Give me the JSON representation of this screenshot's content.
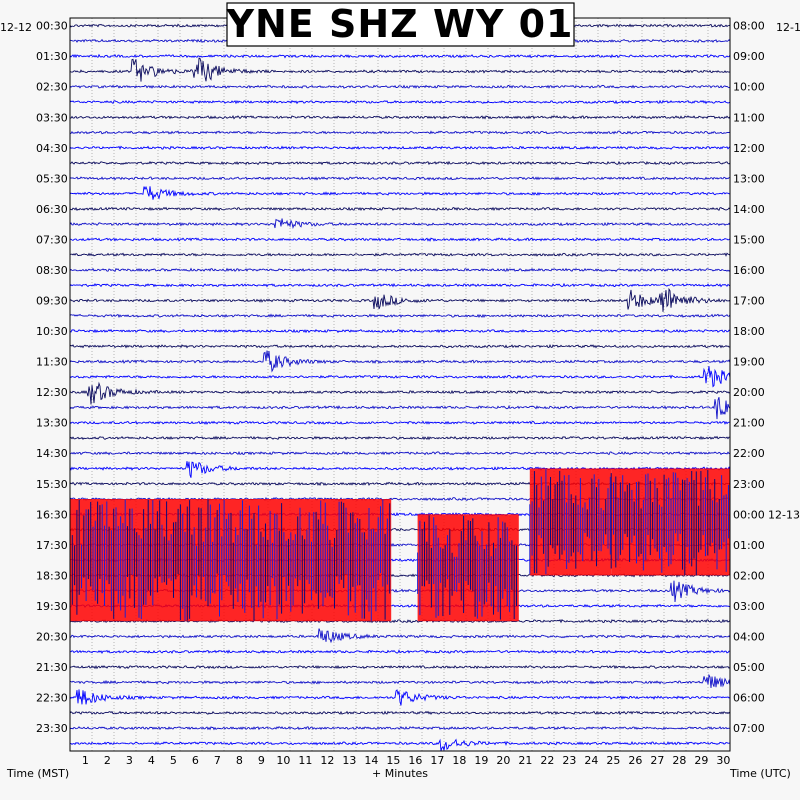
{
  "chart_data": {
    "type": "heatmap",
    "title": "YNE SHZ WY 01",
    "left_date": "12-12",
    "right_date": "12-1",
    "right_date_rollover": "12-13",
    "xlabel": "+ Minutes",
    "left_axis_label": "Time (MST)",
    "right_axis_label": "Time (UTC)",
    "x_ticks": [
      "1",
      "2",
      "3",
      "4",
      "5",
      "6",
      "7",
      "8",
      "9",
      "10",
      "11",
      "12",
      "13",
      "14",
      "15",
      "16",
      "17",
      "18",
      "19",
      "20",
      "21",
      "22",
      "23",
      "24",
      "25",
      "26",
      "27",
      "28",
      "29",
      "30"
    ],
    "x_range": [
      0,
      30
    ],
    "left_ticks": [
      "00:30",
      "01:30",
      "02:30",
      "03:30",
      "04:30",
      "05:30",
      "06:30",
      "07:30",
      "08:30",
      "09:30",
      "10:30",
      "11:30",
      "12:30",
      "13:30",
      "14:30",
      "15:30",
      "16:30",
      "17:30",
      "18:30",
      "19:30",
      "20:30",
      "21:30",
      "22:30",
      "23:30"
    ],
    "right_ticks": [
      "08:00",
      "09:00",
      "10:00",
      "11:00",
      "12:00",
      "13:00",
      "14:00",
      "15:00",
      "16:00",
      "17:00",
      "18:00",
      "19:00",
      "20:00",
      "21:00",
      "22:00",
      "23:00",
      "00:00",
      "01:00",
      "02:00",
      "03:00",
      "04:00",
      "05:00",
      "06:00",
      "07:00"
    ],
    "trace_colors": [
      "#0b0b5e",
      "#1010c8",
      "#0000ff"
    ],
    "saturation_color": "#ff0000",
    "grid": true,
    "saturated_blocks": [
      {
        "start_min": 0.0,
        "end_min": 14.6,
        "start_row": 31,
        "end_row": 39
      },
      {
        "start_min": 15.8,
        "end_min": 20.4,
        "start_row": 32,
        "end_row": 39
      },
      {
        "start_min": 20.9,
        "end_min": 24.6,
        "start_row": 29,
        "end_row": 36
      },
      {
        "start_min": 24.6,
        "end_min": 30.0,
        "start_row": 29,
        "end_row": 36
      }
    ],
    "events": [
      {
        "row": 3,
        "minute": 3.0,
        "amp": 12
      },
      {
        "row": 3,
        "minute": 5.8,
        "amp": 15
      },
      {
        "row": 11,
        "minute": 3.5,
        "amp": 8
      },
      {
        "row": 13,
        "minute": 9.5,
        "amp": 6
      },
      {
        "row": 18,
        "minute": 14.0,
        "amp": 8
      },
      {
        "row": 18,
        "minute": 25.5,
        "amp": 10
      },
      {
        "row": 18,
        "minute": 27.0,
        "amp": 14
      },
      {
        "row": 22,
        "minute": 9.0,
        "amp": 11
      },
      {
        "row": 23,
        "minute": 29.0,
        "amp": 12
      },
      {
        "row": 24,
        "minute": 1.0,
        "amp": 12
      },
      {
        "row": 25,
        "minute": 29.5,
        "amp": 12
      },
      {
        "row": 29,
        "minute": 5.5,
        "amp": 9
      },
      {
        "row": 37,
        "minute": 27.5,
        "amp": 10
      },
      {
        "row": 40,
        "minute": 11.5,
        "amp": 8
      },
      {
        "row": 43,
        "minute": 29.0,
        "amp": 8
      },
      {
        "row": 44,
        "minute": 0.5,
        "amp": 9
      },
      {
        "row": 44,
        "minute": 15.0,
        "amp": 8
      },
      {
        "row": 47,
        "minute": 17.0,
        "amp": 7
      }
    ]
  }
}
